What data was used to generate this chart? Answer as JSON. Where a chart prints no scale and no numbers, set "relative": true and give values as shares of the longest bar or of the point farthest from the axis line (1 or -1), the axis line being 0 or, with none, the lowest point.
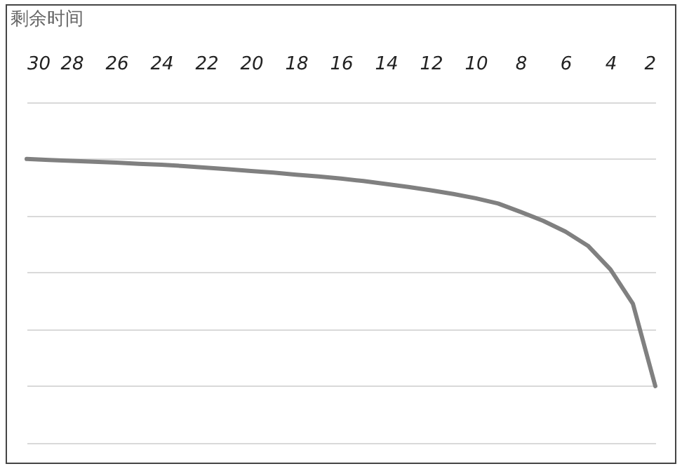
{
  "chart_data": {
    "type": "line",
    "xlabel": "剩余时间",
    "relative": true,
    "grid": "y",
    "marker": "none",
    "line_style": "solid",
    "xlim": [
      30,
      2
    ],
    "xticks": [
      30,
      28,
      26,
      24,
      22,
      20,
      18,
      16,
      14,
      12,
      10,
      8,
      6,
      4,
      2
    ],
    "x": [
      30,
      29,
      28,
      27,
      26,
      25,
      24,
      23,
      22,
      21,
      20,
      19,
      18,
      17,
      16,
      15,
      14,
      13,
      12,
      11,
      10,
      9,
      8,
      7,
      6,
      5,
      4,
      3,
      2
    ],
    "series": [
      {
        "color": "#808080",
        "values": [
          1.0,
          0.996,
          0.992,
          0.988,
          0.984,
          0.979,
          0.975,
          0.969,
          0.962,
          0.955,
          0.947,
          0.94,
          0.931,
          0.923,
          0.914,
          0.903,
          0.89,
          0.877,
          0.862,
          0.846,
          0.827,
          0.804,
          0.767,
          0.728,
          0.68,
          0.618,
          0.514,
          0.363,
          0
        ]
      }
    ]
  }
}
